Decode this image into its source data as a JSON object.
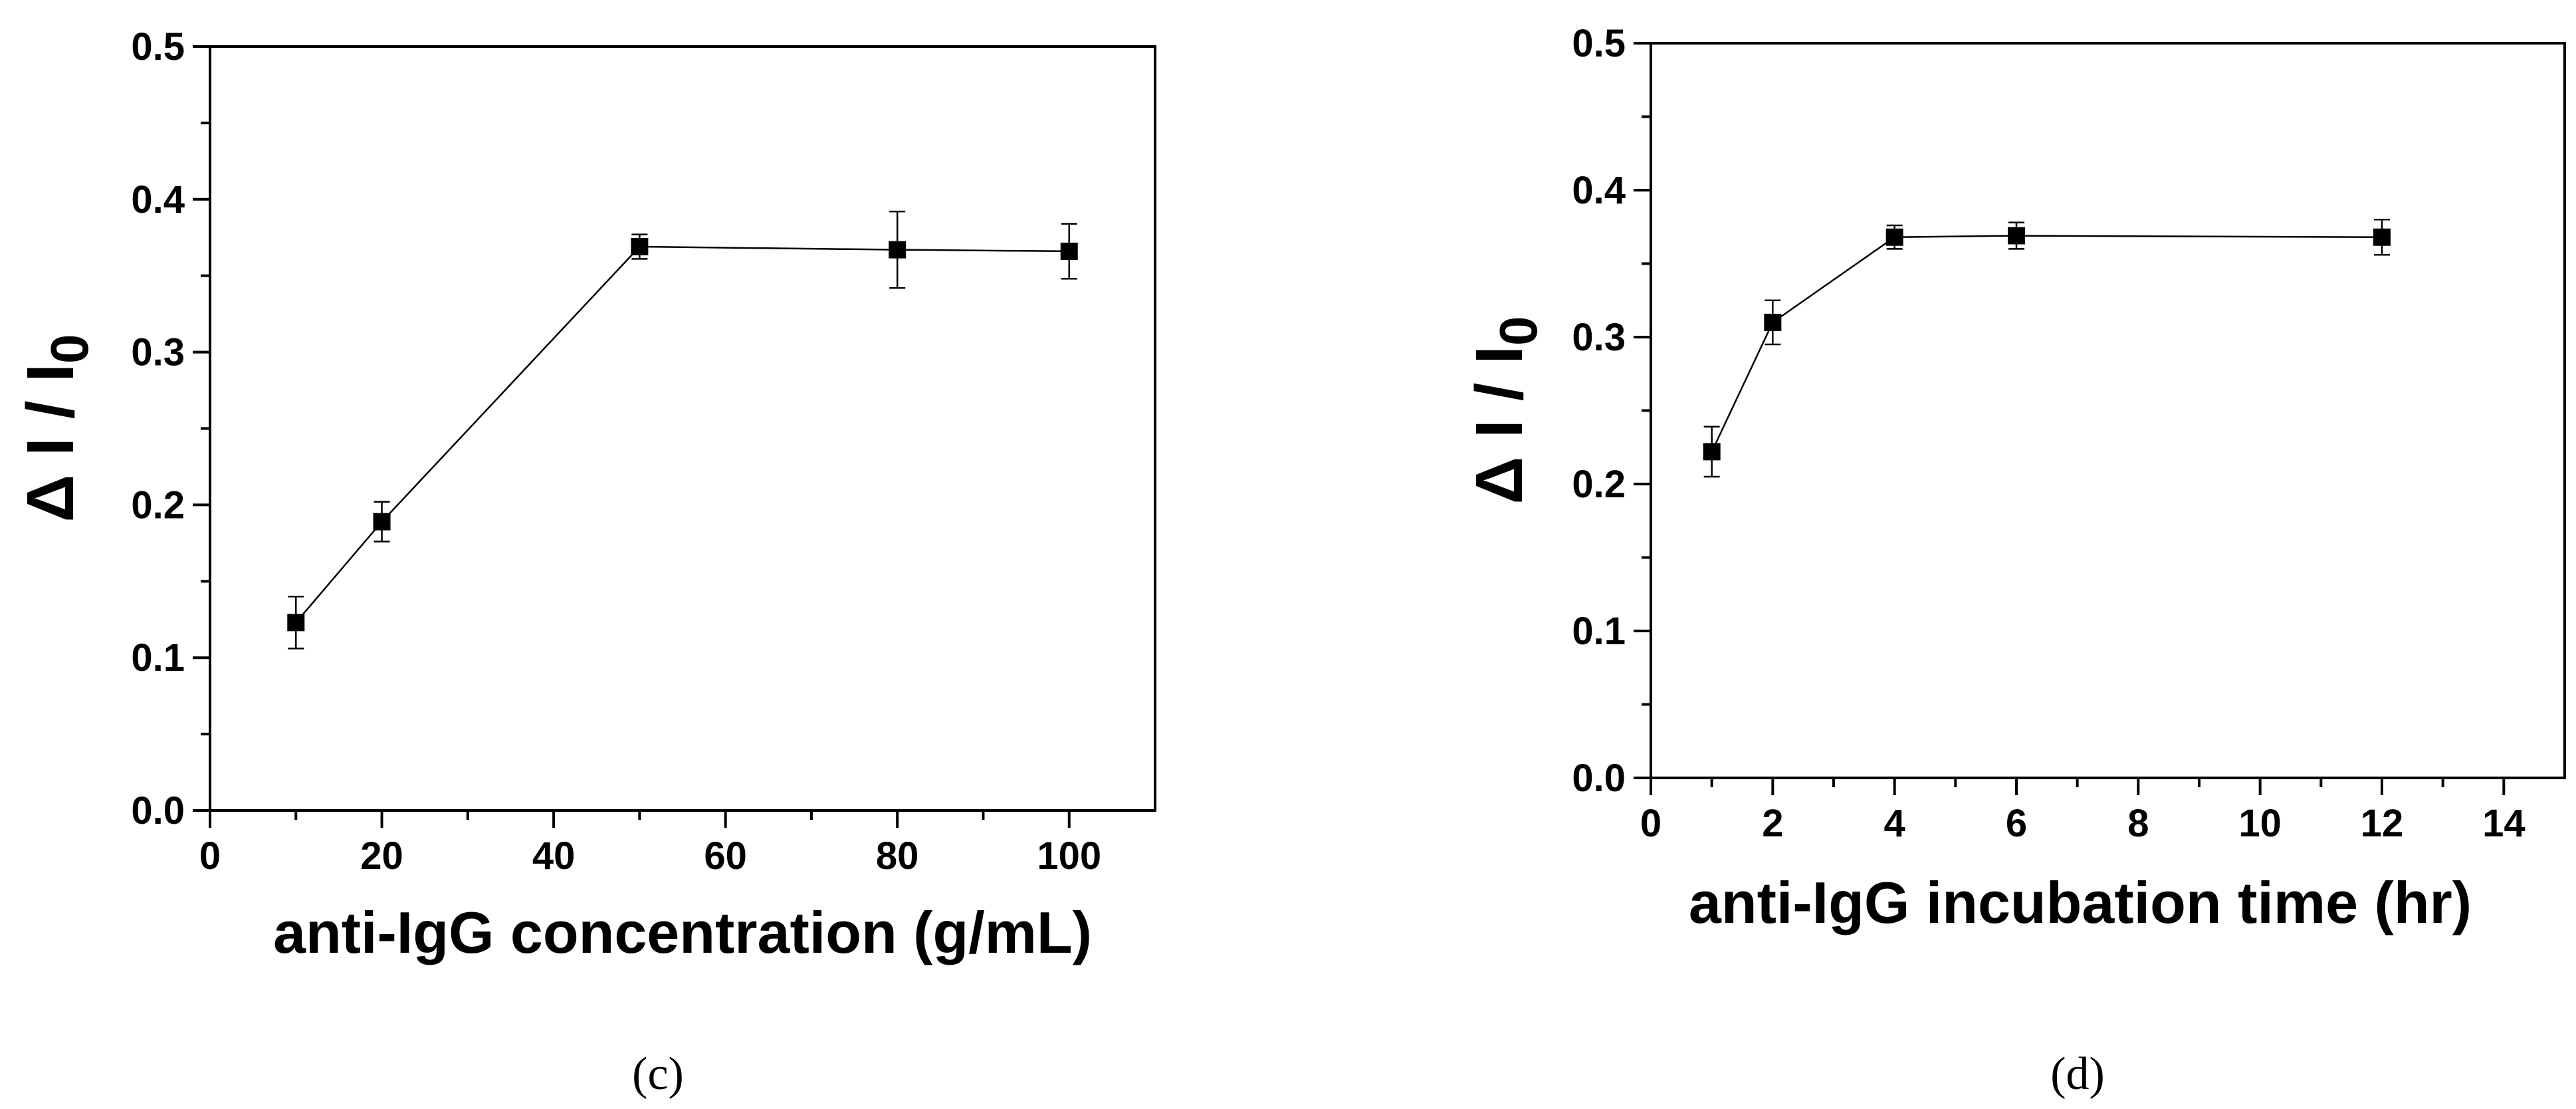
{
  "chart_data": [
    {
      "type": "line",
      "panel_label": "(c)",
      "title": "",
      "xlabel": "anti-IgG concentration (g/mL)",
      "ylabel": {
        "main": "Δ I / I",
        "sub": "0"
      },
      "xlim": [
        0,
        110
      ],
      "ylim": [
        0,
        0.5
      ],
      "xticks": [
        0,
        20,
        40,
        60,
        80,
        100
      ],
      "yticks": [
        0.0,
        0.1,
        0.2,
        0.3,
        0.4,
        0.5
      ],
      "xtick_labels": [
        "0",
        "20",
        "40",
        "60",
        "80",
        "100"
      ],
      "ytick_labels": [
        "0.0",
        "0.1",
        "0.2",
        "0.3",
        "0.4",
        "0.5"
      ],
      "grid": false,
      "marker": "square",
      "color": "#000000",
      "series": [
        {
          "x": [
            10,
            20,
            50,
            80,
            100
          ],
          "y": [
            0.123,
            0.189,
            0.369,
            0.367,
            0.366
          ],
          "err": [
            0.017,
            0.013,
            0.008,
            0.025,
            0.018
          ]
        }
      ]
    },
    {
      "type": "line",
      "panel_label": "(d)",
      "title": "",
      "xlabel": "anti-IgG incubation time  (hr)",
      "ylabel": {
        "main": "Δ I / I",
        "sub": "0"
      },
      "xlim": [
        0,
        15
      ],
      "ylim": [
        0,
        0.5
      ],
      "xticks": [
        0,
        2,
        4,
        6,
        8,
        10,
        12,
        14
      ],
      "yticks": [
        0.0,
        0.1,
        0.2,
        0.3,
        0.4,
        0.5
      ],
      "xtick_labels": [
        "0",
        "2",
        "4",
        "6",
        "8",
        "10",
        "12",
        "14"
      ],
      "ytick_labels": [
        "0.0",
        "0.1",
        "0.2",
        "0.3",
        "0.4",
        "0.5"
      ],
      "grid": false,
      "marker": "square",
      "color": "#000000",
      "series": [
        {
          "x": [
            1,
            2,
            4,
            6,
            12
          ],
          "y": [
            0.222,
            0.31,
            0.368,
            0.369,
            0.368
          ],
          "err": [
            0.017,
            0.015,
            0.008,
            0.009,
            0.012
          ]
        }
      ]
    }
  ]
}
